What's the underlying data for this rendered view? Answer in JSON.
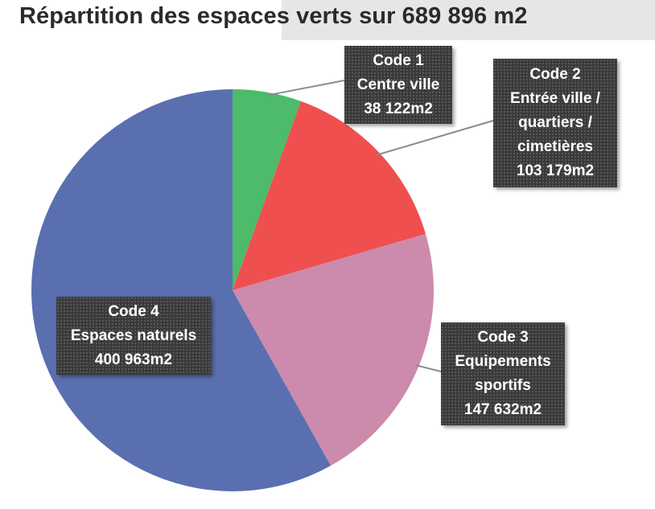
{
  "chart_data": {
    "type": "pie",
    "title": "Répartition des espaces verts sur 689 896 m2",
    "start_angle_deg": 0,
    "direction": "clockwise",
    "slices": [
      {
        "lines": [
          "Code 1",
          "Centre ville",
          "38 122m2"
        ],
        "value": 38122,
        "color": "#4dbb6a"
      },
      {
        "lines": [
          "Code 2",
          "Entrée ville /",
          "quartiers /",
          "cimetières",
          "103 179m2"
        ],
        "value": 103179,
        "color": "#ef4f4f"
      },
      {
        "lines": [
          "Code 3",
          "Equipements",
          "sportifs",
          "147 632m2"
        ],
        "value": 147632,
        "color": "#cc8aad"
      },
      {
        "lines": [
          "Code 4",
          "Espaces naturels",
          "400 963m2"
        ],
        "value": 400963,
        "color": "#5a6fb0"
      }
    ],
    "leader_line_color": "#8c8c8c"
  }
}
